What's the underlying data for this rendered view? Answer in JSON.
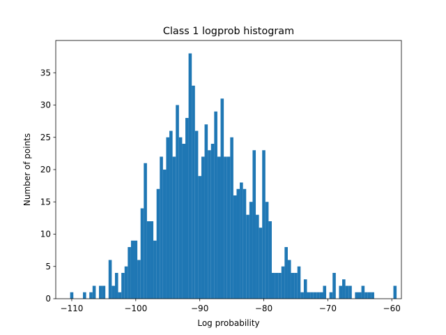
{
  "chart_data": {
    "type": "bar",
    "title": "Class 1 logprob histogram",
    "xlabel": "Log probability",
    "ylabel": "Number of points",
    "xlim": [
      -112.5,
      -58.5
    ],
    "ylim": [
      0,
      40
    ],
    "x_ticks": [
      -110,
      -100,
      -90,
      -80,
      -70,
      -60
    ],
    "x_tick_labels": [
      "−110",
      "−100",
      "−90",
      "−80",
      "−70",
      "−60"
    ],
    "y_ticks": [
      0,
      5,
      10,
      15,
      20,
      25,
      30,
      35
    ],
    "y_tick_labels": [
      "0",
      "5",
      "10",
      "15",
      "20",
      "25",
      "30",
      "35"
    ],
    "bin_width": 0.5,
    "bins_start": [
      -110.25,
      -108.25,
      -107.75,
      -107.25,
      -106.75,
      -106.25,
      -105.75,
      -105.25,
      -104.75,
      -104.25,
      -103.75,
      -103.25,
      -102.75,
      -102.25,
      -101.75,
      -101.25,
      -100.75,
      -100.25,
      -99.75,
      -99.25,
      -98.75,
      -98.25,
      -97.75,
      -97.25,
      -96.75,
      -96.25,
      -95.75,
      -95.25,
      -94.75,
      -94.25,
      -93.75,
      -93.25,
      -92.75,
      -92.25,
      -91.75,
      -91.25,
      -90.75,
      -90.25,
      -89.75,
      -89.25,
      -88.75,
      -88.25,
      -87.75,
      -87.25,
      -86.75,
      -86.25,
      -85.75,
      -85.25,
      -84.75,
      -84.25,
      -83.75,
      -83.25,
      -82.75,
      -82.25,
      -81.75,
      -81.25,
      -80.75,
      -80.25,
      -79.75,
      -79.25,
      -78.75,
      -78.25,
      -77.75,
      -77.25,
      -76.75,
      -76.25,
      -75.75,
      -75.25,
      -74.75,
      -74.25,
      -73.75,
      -73.25,
      -72.75,
      -72.25,
      -71.75,
      -71.25,
      -70.75,
      -70.25,
      -69.75,
      -69.25,
      -68.75,
      -68.25,
      -67.75,
      -67.25,
      -66.75,
      -66.25,
      -65.75,
      -65.25,
      -64.75,
      -64.25,
      -63.75,
      -63.25,
      -59.75
    ],
    "values": [
      1,
      1,
      0,
      1,
      2,
      0,
      2,
      2,
      0,
      6,
      2,
      4,
      1,
      4,
      5,
      8,
      9,
      9,
      6,
      14,
      21,
      12,
      12,
      9,
      17,
      22,
      20,
      25,
      26,
      22,
      30,
      25,
      24,
      28,
      38,
      33,
      26,
      19,
      22,
      27,
      23,
      24,
      29,
      22,
      31,
      22,
      22,
      25,
      16,
      17,
      18,
      17,
      13,
      15,
      23,
      13,
      11,
      23,
      15,
      12,
      4,
      4,
      4,
      5,
      8,
      6,
      4,
      4,
      5,
      1,
      3,
      1,
      1,
      1,
      1,
      1,
      2,
      0,
      1,
      4,
      0,
      2,
      3,
      2,
      2,
      0,
      1,
      1,
      2,
      1,
      1,
      1,
      2
    ],
    "color": "#1f77b4",
    "grid": false
  }
}
